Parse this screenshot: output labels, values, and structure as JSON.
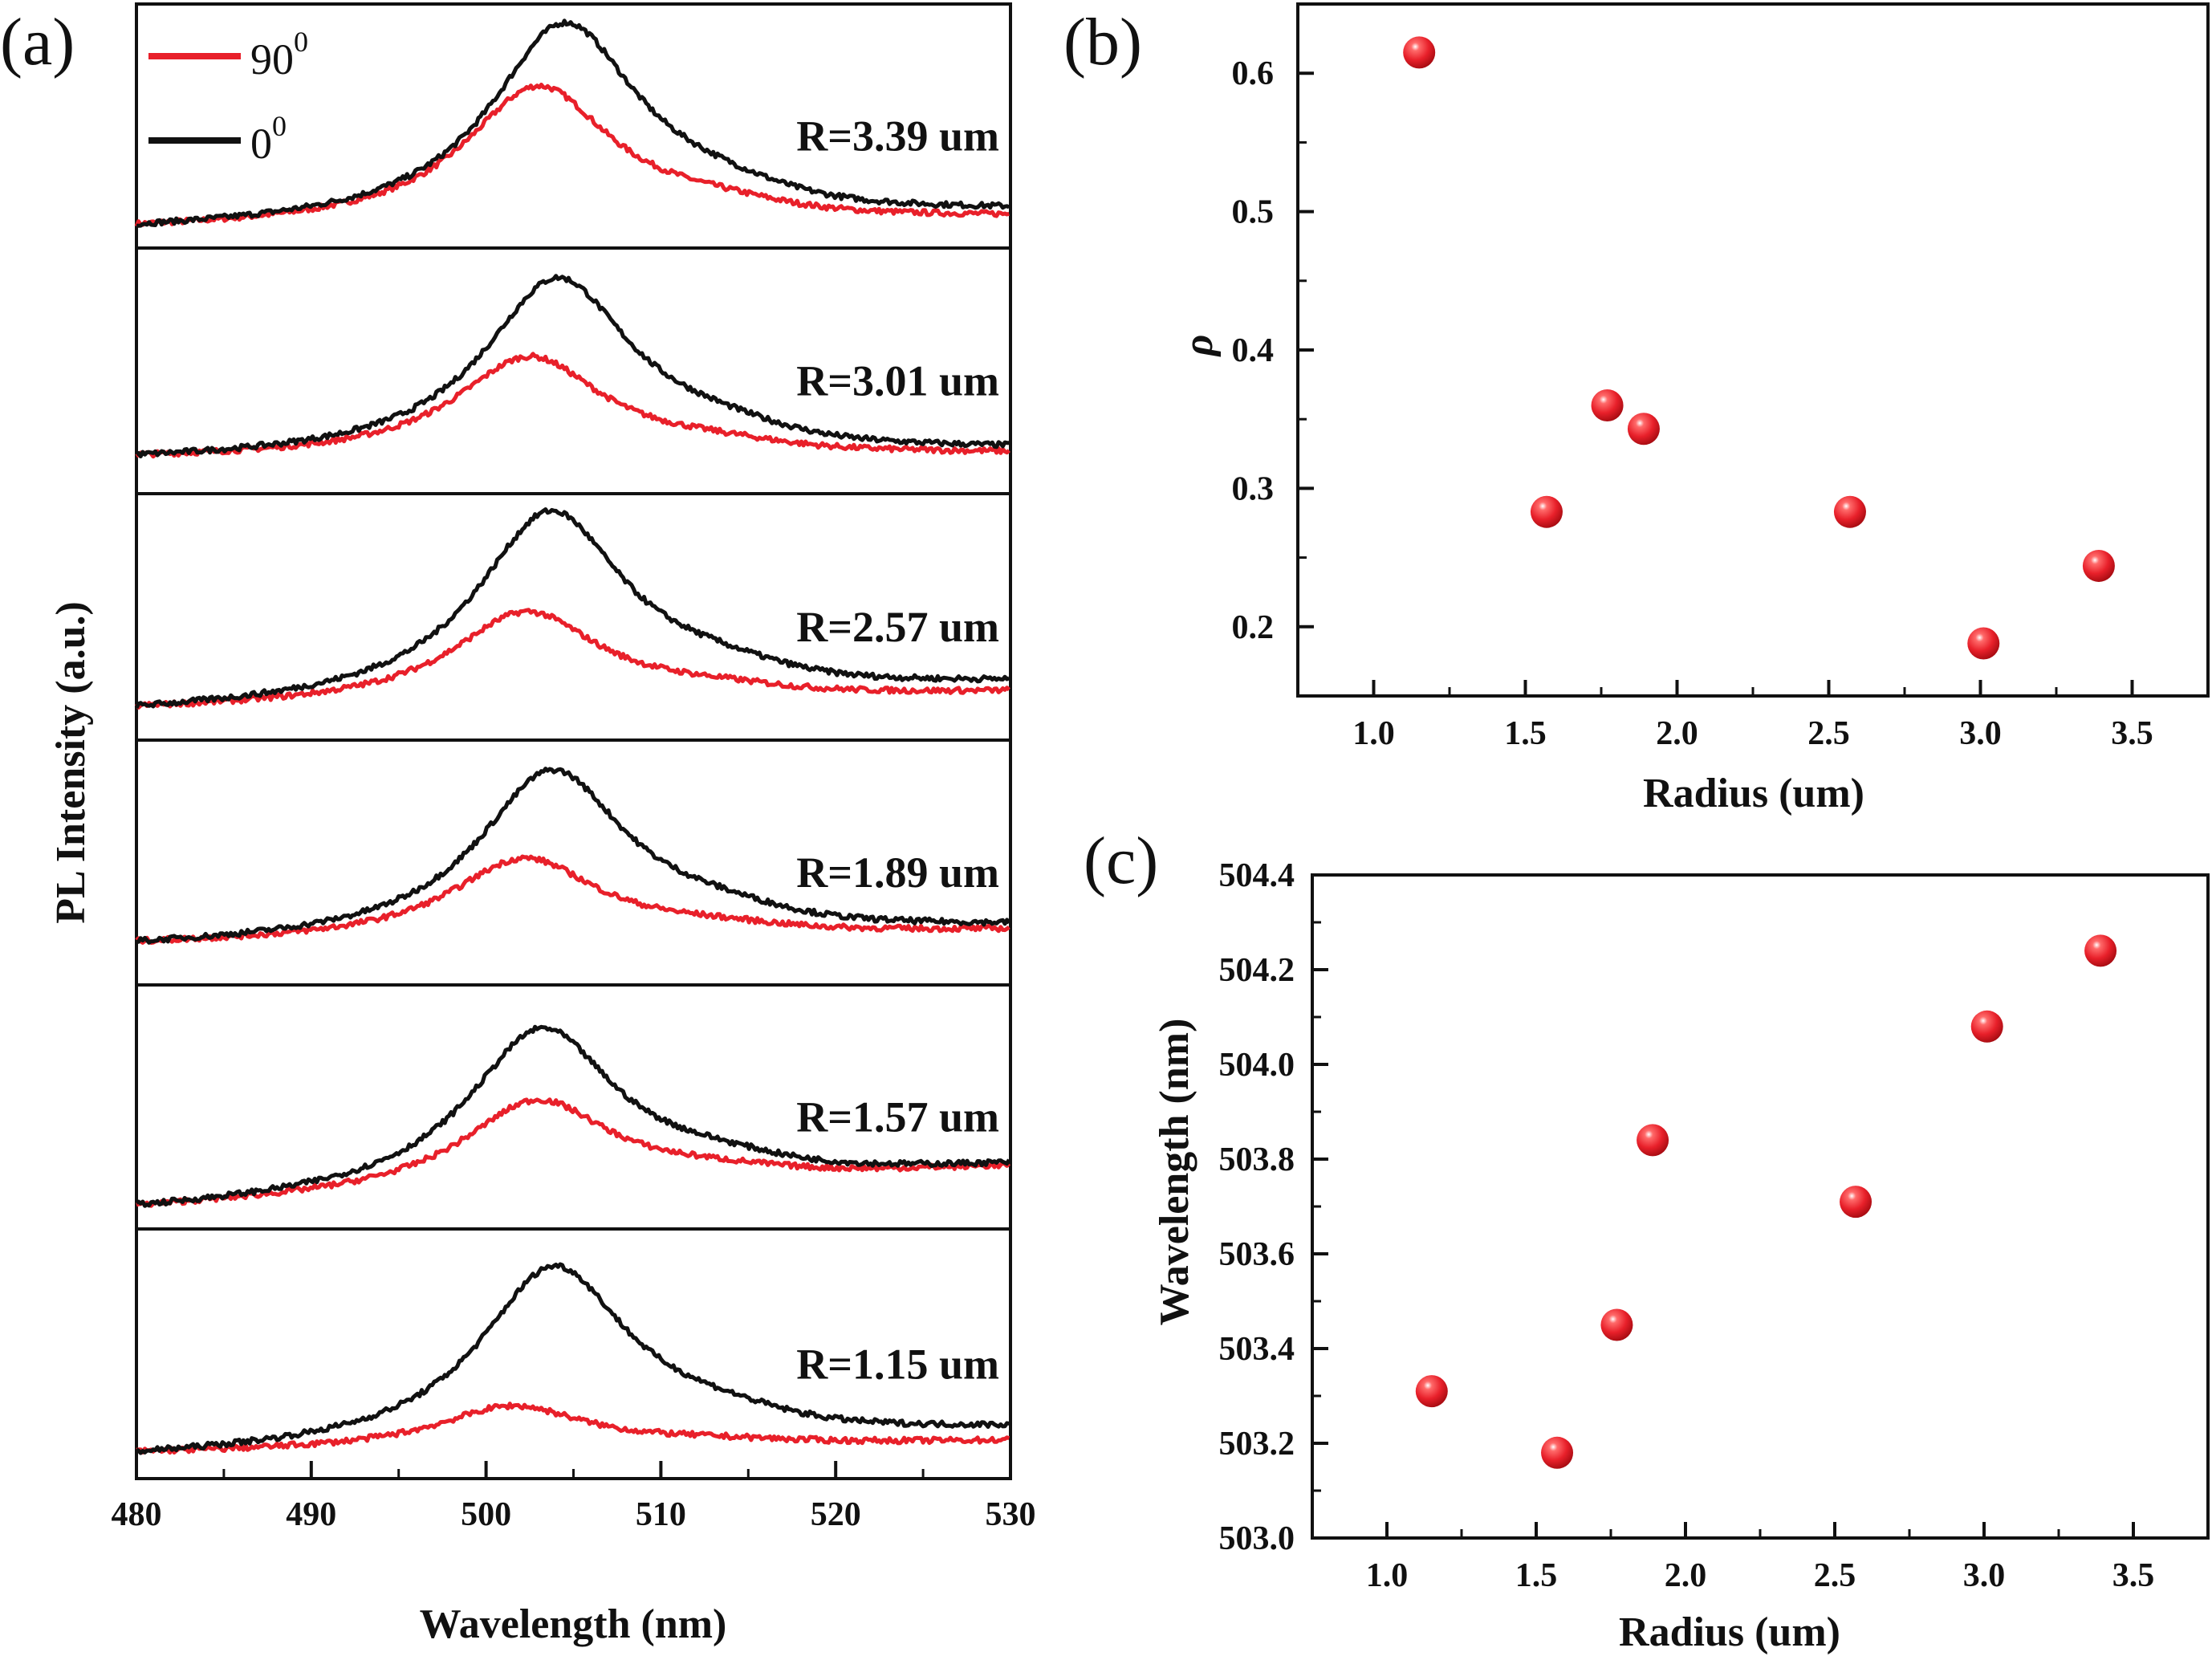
{
  "colors": {
    "red": "#e8202a",
    "black": "#111111"
  },
  "chart_data": [
    {
      "type": "line",
      "panel_label": "(a)",
      "xlabel": "Wavelength (nm)",
      "ylabel": "PL Intensity (a.u.)",
      "xlim": [
        480,
        530
      ],
      "xticks": [
        480,
        490,
        500,
        510,
        520,
        530
      ],
      "legend": {
        "placement": "top-left",
        "entries": [
          {
            "name": "90",
            "sup": "0",
            "color": "#e8202a"
          },
          {
            "name": "0",
            "sup": "0",
            "color": "#111111"
          }
        ]
      },
      "subplots": [
        {
          "label": "R=3.39 um",
          "series": [
            {
              "color": "#e8202a",
              "peak_nm": 503.0,
              "peak_intensity": 0.67,
              "start": 0.1,
              "end": 0.12
            },
            {
              "color": "#111111",
              "peak_nm": 504.5,
              "peak_intensity": 0.92,
              "start": 0.1,
              "end": 0.14
            }
          ]
        },
        {
          "label": "R=3.01 um",
          "series": [
            {
              "color": "#e8202a",
              "peak_nm": 502.5,
              "peak_intensity": 0.57,
              "start": 0.16,
              "end": 0.16
            },
            {
              "color": "#111111",
              "peak_nm": 504.1,
              "peak_intensity": 0.89,
              "start": 0.16,
              "end": 0.17
            }
          ]
        },
        {
          "label": "R=2.57 um",
          "series": [
            {
              "color": "#e8202a",
              "peak_nm": 502.3,
              "peak_intensity": 0.51,
              "start": 0.14,
              "end": 0.19
            },
            {
              "color": "#111111",
              "peak_nm": 503.7,
              "peak_intensity": 0.91,
              "start": 0.14,
              "end": 0.22
            }
          ]
        },
        {
          "label": "R=1.89 um",
          "series": [
            {
              "color": "#e8202a",
              "peak_nm": 502.2,
              "peak_intensity": 0.51,
              "start": 0.18,
              "end": 0.22
            },
            {
              "color": "#111111",
              "peak_nm": 503.8,
              "peak_intensity": 0.87,
              "start": 0.18,
              "end": 0.23
            }
          ]
        },
        {
          "label": "R=1.57 um",
          "series": [
            {
              "color": "#e8202a",
              "peak_nm": 502.9,
              "peak_intensity": 0.47,
              "start": 0.1,
              "end": 0.25
            },
            {
              "color": "#111111",
              "peak_nm": 503.2,
              "peak_intensity": 0.77,
              "start": 0.1,
              "end": 0.25
            }
          ]
        },
        {
          "label": "R=1.15 um",
          "series": [
            {
              "color": "#e8202a",
              "peak_nm": 501.5,
              "peak_intensity": 0.28,
              "start": 0.11,
              "end": 0.15
            },
            {
              "color": "#111111",
              "peak_nm": 503.9,
              "peak_intensity": 0.83,
              "start": 0.11,
              "end": 0.19
            }
          ]
        }
      ]
    },
    {
      "type": "scatter",
      "panel_label": "(b)",
      "xlabel": "Radius (um)",
      "ylabel": "ρ",
      "xlim": [
        0.75,
        3.75
      ],
      "ylim": [
        0.15,
        0.65
      ],
      "xticks": [
        "1.0",
        "1.5",
        "2.0",
        "2.5",
        "3.0",
        "3.5"
      ],
      "yticks": [
        "0.2",
        "0.3",
        "0.4",
        "0.5",
        "0.6"
      ],
      "marker_color": "#e8202a",
      "x": [
        1.15,
        1.57,
        1.77,
        1.89,
        2.57,
        3.01,
        3.39
      ],
      "y": [
        0.615,
        0.283,
        0.36,
        0.343,
        0.283,
        0.188,
        0.244
      ]
    },
    {
      "type": "scatter",
      "panel_label": "(c)",
      "xlabel": "Radius (um)",
      "ylabel": "Wavelength (nm)",
      "xlim": [
        0.75,
        3.75
      ],
      "ylim": [
        503.0,
        504.4
      ],
      "xticks": [
        "1.0",
        "1.5",
        "2.0",
        "2.5",
        "3.0",
        "3.5"
      ],
      "yticks": [
        "503.0",
        "503.2",
        "503.4",
        "503.6",
        "503.8",
        "504.0",
        "504.2",
        "504.4"
      ],
      "marker_color": "#e8202a",
      "x": [
        1.15,
        1.57,
        1.77,
        1.89,
        2.57,
        3.01,
        3.39
      ],
      "y": [
        503.31,
        503.18,
        503.45,
        503.84,
        503.71,
        504.08,
        504.24
      ]
    }
  ]
}
